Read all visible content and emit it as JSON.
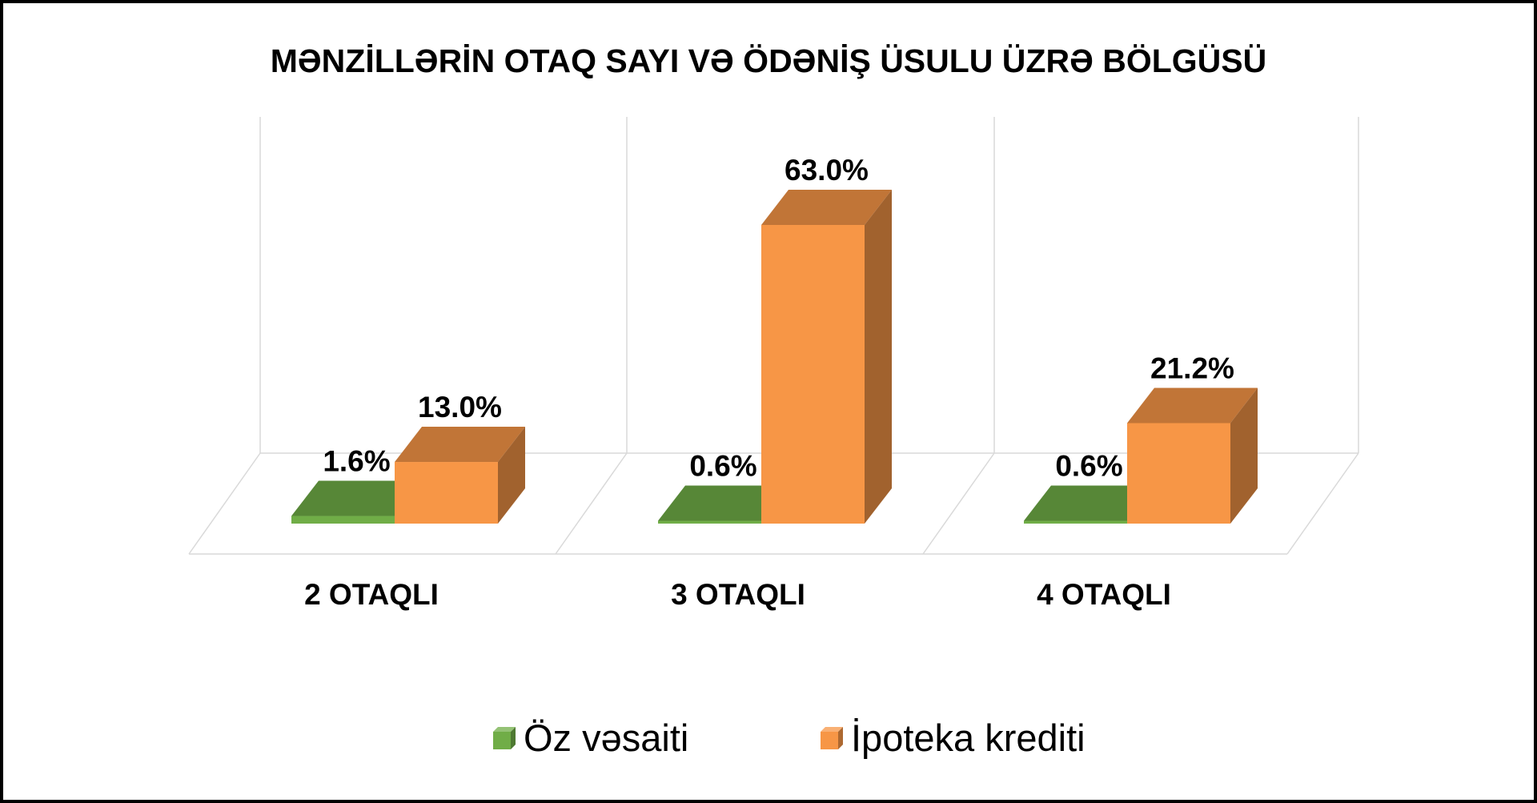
{
  "chart_data": {
    "type": "bar",
    "title": "MƏNZİLLƏRİN OTAQ SAYI VƏ ÖDƏNİŞ ÜSULU ÜZRƏ BÖLGÜSÜ",
    "categories": [
      "2 OTAQLI",
      "3 OTAQLI",
      "4 OTAQLI"
    ],
    "series": [
      {
        "name": "Öz vəsaiti",
        "values": [
          1.6,
          0.6,
          0.6
        ],
        "labels": [
          "1.6%",
          "0.6%",
          "0.6%"
        ],
        "color": "#70AD47"
      },
      {
        "name": "İpoteka krediti",
        "values": [
          13.0,
          63.0,
          21.2
        ],
        "labels": [
          "13.0%",
          "63.0%",
          "21.2%"
        ],
        "color": "#F79646"
      }
    ],
    "ylim": [
      0,
      63.0
    ],
    "unit": "%",
    "three_d": true,
    "grid": false,
    "legend": "bottom"
  }
}
